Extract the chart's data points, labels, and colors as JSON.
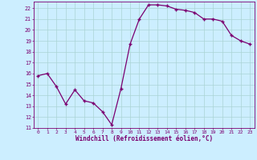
{
  "x": [
    0,
    1,
    2,
    3,
    4,
    5,
    6,
    7,
    8,
    9,
    10,
    11,
    12,
    13,
    14,
    15,
    16,
    17,
    18,
    19,
    20,
    21,
    22,
    23
  ],
  "y": [
    15.8,
    16.0,
    14.8,
    13.2,
    14.5,
    13.5,
    13.3,
    12.5,
    11.3,
    14.6,
    18.7,
    21.0,
    22.3,
    22.3,
    22.2,
    21.9,
    21.8,
    21.6,
    21.0,
    21.0,
    20.8,
    19.5,
    19.0,
    18.7
  ],
  "line_color": "#7B0070",
  "marker_color": "#7B0070",
  "bg_color": "#cceeff",
  "grid_color": "#aad4d4",
  "axis_label_color": "#7B0070",
  "tick_color": "#7B0070",
  "xlabel": "Windchill (Refroidissement éolien,°C)",
  "xlim": [
    -0.5,
    23.5
  ],
  "ylim": [
    11,
    22.6
  ],
  "yticks": [
    11,
    12,
    13,
    14,
    15,
    16,
    17,
    18,
    19,
    20,
    21,
    22
  ],
  "xticks": [
    0,
    1,
    2,
    3,
    4,
    5,
    6,
    7,
    8,
    9,
    10,
    11,
    12,
    13,
    14,
    15,
    16,
    17,
    18,
    19,
    20,
    21,
    22,
    23
  ]
}
